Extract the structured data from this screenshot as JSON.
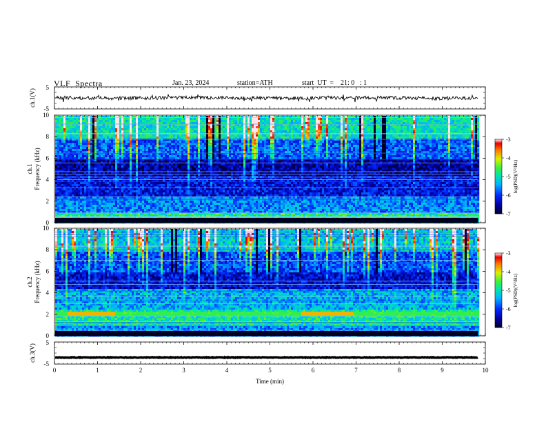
{
  "header": {
    "title": "VLF  Spectra",
    "date": "Jan. 23, 2024",
    "station": "station=ATH",
    "start_ut": "start  UT  =    21: 0   : 1"
  },
  "chart_data": [
    {
      "type": "line",
      "panel": "ch1-waveform",
      "ylabel": "ch.1(V)",
      "ylim": [
        -5,
        5
      ],
      "yticks": [
        "5",
        "-5"
      ],
      "x_range_min": [
        0,
        9.83
      ],
      "series": [
        {
          "values_approx": "noise around 0 V, amplitude ~1 V"
        }
      ],
      "color": "#000000"
    },
    {
      "type": "heatmap",
      "panel": "ch1-spectrogram",
      "ylabel_top": "ch.1",
      "ylabel": "Frequency  (kHz)",
      "ylim": [
        0,
        10
      ],
      "yticks": [
        "0",
        "2",
        "4",
        "6",
        "8",
        "10"
      ],
      "colorbar": {
        "label": "log(PSD)(V²/Hz)",
        "ticks": [
          "-3",
          "-4",
          "-5",
          "-6",
          "-7"
        ],
        "range": [
          -7,
          -3
        ]
      },
      "levels": [
        {
          "f_khz": [
            0.0,
            0.5
          ],
          "log_psd": -5.2
        },
        {
          "f_khz": [
            0.5,
            1.0
          ],
          "log_psd": -4.8
        },
        {
          "f_khz": [
            1.0,
            2.5
          ],
          "log_psd": -5.6
        },
        {
          "f_khz": [
            2.5,
            4.5
          ],
          "log_psd": -6.2
        },
        {
          "f_khz": [
            4.5,
            6.0
          ],
          "log_psd": -6.5
        },
        {
          "f_khz": [
            6.0,
            8.0
          ],
          "log_psd": -5.8
        },
        {
          "f_khz": [
            8.0,
            10.0
          ],
          "log_psd": -5.0
        }
      ]
    },
    {
      "type": "heatmap",
      "panel": "ch2-spectrogram",
      "ylabel_top": "ch.2",
      "ylabel": "Frequency  (kHz)",
      "ylim": [
        0,
        10
      ],
      "yticks": [
        "0",
        "2",
        "4",
        "6",
        "8",
        "10"
      ],
      "colorbar": {
        "label": "log(PSD)(V²/Hz)",
        "ticks": [
          "-3",
          "-4",
          "-5",
          "-6",
          "-7"
        ],
        "range": [
          -7,
          -3
        ]
      },
      "levels": [
        {
          "f_khz": [
            0.0,
            1.0
          ],
          "log_psd": -5.6
        },
        {
          "f_khz": [
            1.0,
            2.5
          ],
          "log_psd": -4.9
        },
        {
          "f_khz": [
            2.5,
            4.5
          ],
          "log_psd": -5.4
        },
        {
          "f_khz": [
            4.5,
            6.0
          ],
          "log_psd": -6.3
        },
        {
          "f_khz": [
            6.0,
            8.0
          ],
          "log_psd": -5.9
        },
        {
          "f_khz": [
            8.0,
            10.0
          ],
          "log_psd": -5.2
        }
      ],
      "strong_band": {
        "f_khz": 2.1,
        "t_min": [
          [
            0.3,
            1.4
          ],
          [
            5.7,
            6.9
          ]
        ],
        "log_psd": -3.8
      }
    },
    {
      "type": "line",
      "panel": "ch3-waveform",
      "ylabel": "ch.3(V)",
      "ylim": [
        -5,
        5
      ],
      "yticks": [
        "5",
        "-5"
      ],
      "series": [
        {
          "values_approx": "flat near -2 V"
        }
      ],
      "color": "#000000"
    }
  ],
  "xaxis": {
    "label": "Time  (min)",
    "range": [
      0,
      10
    ],
    "ticks": [
      "0",
      "1",
      "2",
      "3",
      "4",
      "5",
      "6",
      "7",
      "8",
      "9",
      "10"
    ],
    "data_end": 9.83
  }
}
